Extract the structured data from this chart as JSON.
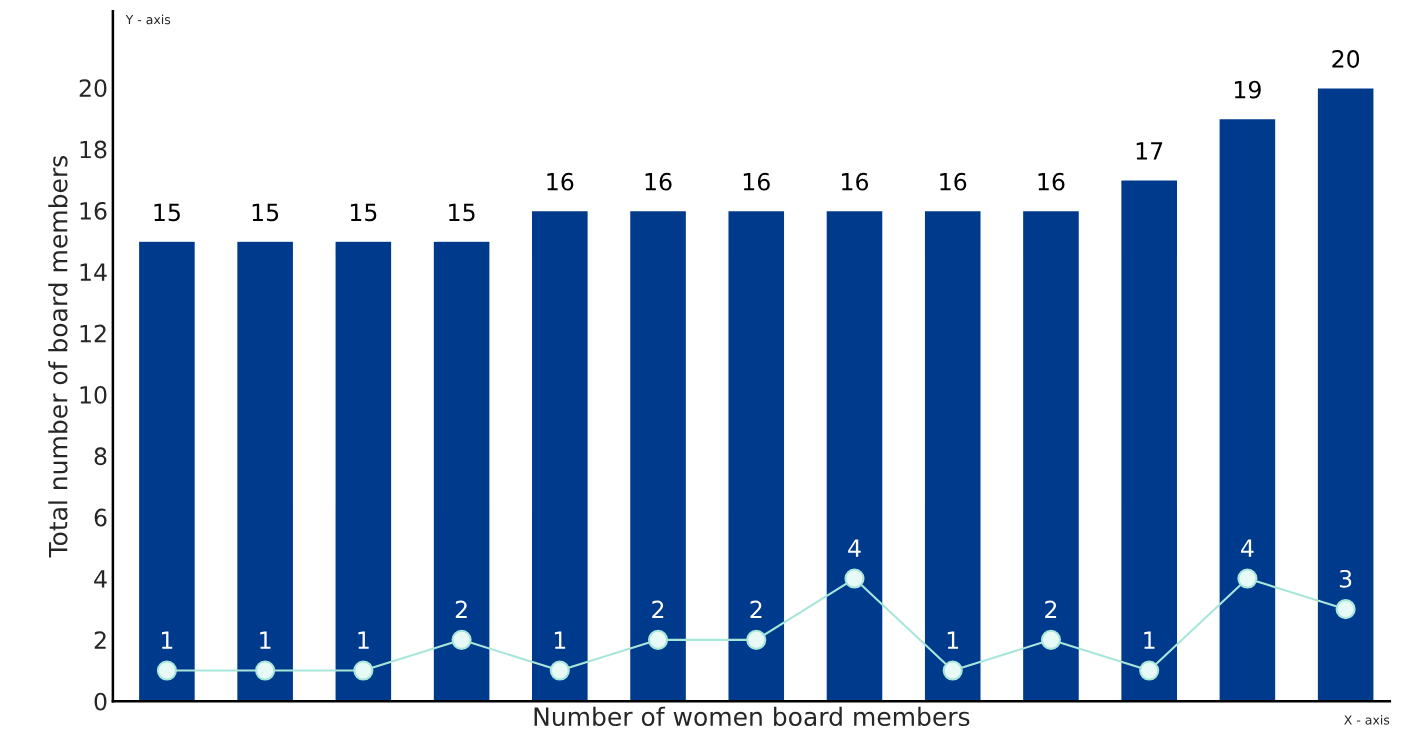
{
  "chart_data": {
    "type": "bar",
    "xlabel": "Number of women board members",
    "ylabel": "Total number of board members",
    "annotations": [
      "Y - axis",
      "X - axis"
    ],
    "categories": [
      null,
      null,
      null,
      null,
      null,
      null,
      null,
      null,
      null,
      null,
      null,
      null,
      null
    ],
    "series": [
      {
        "color": "#003a8c",
        "values": [
          15,
          15,
          15,
          15,
          16,
          16,
          16,
          16,
          16,
          16,
          17,
          19,
          20
        ]
      },
      {
        "type": "line",
        "color": "#a8e6da",
        "marker": "circle",
        "values": [
          1,
          1,
          1,
          2,
          1,
          2,
          2,
          4,
          1,
          2,
          1,
          4,
          3
        ]
      }
    ],
    "ylim": [
      0,
      22.5
    ],
    "yticks": [
      0,
      2,
      4,
      6,
      8,
      10,
      12,
      14,
      16,
      18,
      20
    ],
    "data_labels": true,
    "tick_labels": "y",
    "grid": false
  }
}
